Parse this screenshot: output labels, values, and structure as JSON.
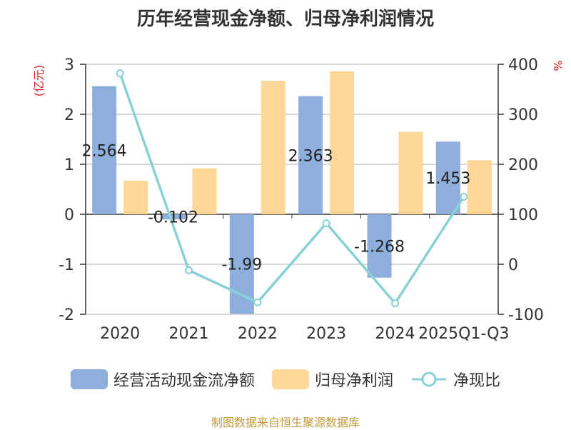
{
  "source_note": "制图数据来自恒生聚源数据库",
  "chart_data": {
    "type": "bar",
    "title": "历年经营现金净额、归母净利润情况",
    "categories": [
      "2020",
      "2021",
      "2022",
      "2023",
      "2024",
      "2025Q1-Q3"
    ],
    "left_axis": {
      "label": "(亿元)",
      "ylim": [
        -2,
        3
      ],
      "ticks": [
        "3",
        "2",
        "1",
        "0",
        "-1",
        "-2"
      ]
    },
    "right_axis": {
      "label": "%",
      "ylim": [
        -100,
        400
      ],
      "ticks": [
        "400",
        "300",
        "200",
        "100",
        "0",
        "-100"
      ]
    },
    "series": [
      {
        "name": "经营活动现金流净额",
        "type": "bar",
        "axis": "left",
        "color": "#8eaedc",
        "values": [
          2.564,
          -0.102,
          -1.99,
          2.363,
          -1.268,
          1.453
        ],
        "labels": [
          "2.564",
          "-0.102",
          "-1.99",
          "2.363",
          "-1.268",
          "1.453"
        ]
      },
      {
        "name": "归母净利润",
        "type": "bar",
        "axis": "left",
        "color": "#fdd699",
        "values": [
          0.67,
          0.92,
          2.67,
          2.86,
          1.65,
          1.08
        ]
      },
      {
        "name": "净现比",
        "type": "line",
        "axis": "right",
        "color": "#88d1d6",
        "values": [
          382,
          -12,
          -76,
          82,
          -78,
          135
        ]
      }
    ],
    "grid": true,
    "legend_position": "bottom"
  }
}
